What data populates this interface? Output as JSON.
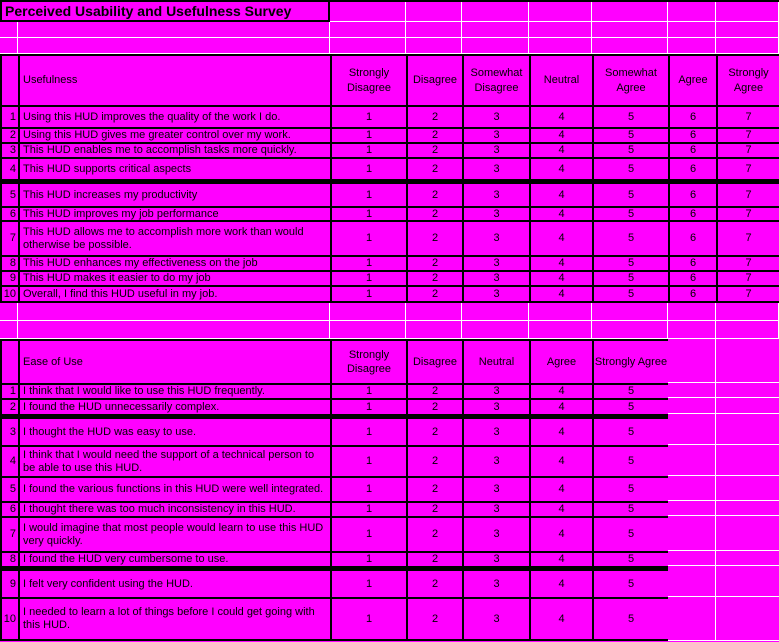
{
  "title": "Perceived Usability and Usefulness Survey",
  "row_numbers": [
    "1",
    "2",
    "3",
    "4",
    "5",
    "6",
    "7",
    "8",
    "9",
    "10"
  ],
  "usefulness_table": {
    "label": "Usefulness",
    "columns": [
      "Strongly Disagree",
      "Disagree",
      "Somewhat Disagree",
      "Neutral",
      "Somewhat Agree",
      "Agree",
      "Strongly Agree"
    ],
    "scale": [
      "1",
      "2",
      "3",
      "4",
      "5",
      "6",
      "7"
    ],
    "items": [
      "Using this HUD improves the quality of the work I do.",
      "Using this HUD gives me greater control over my work.",
      "This HUD enables me to accomplish tasks more quickly.",
      "This HUD supports critical aspects",
      "This HUD increases my productivity",
      "This HUD improves my job performance",
      "This HUD allows me to accomplish more work than would otherwise be possible.",
      "This HUD enhances my effectiveness on the job",
      "This HUD makes it easier to do my job",
      "Overall, I find this HUD useful in my job."
    ]
  },
  "ease_of_use_table": {
    "label": "Ease of Use",
    "columns": [
      "Strongly Disagree",
      "Disagree",
      "Neutral",
      "Agree",
      "Strongly Agree"
    ],
    "scale": [
      "1",
      "2",
      "3",
      "4",
      "5"
    ],
    "items": [
      "I think that I would like to use this HUD frequently.",
      "I found the HUD unnecessarily complex.",
      "I thought the HUD was easy to use.",
      "I think that I would need the support of a technical person to be able to use this HUD.",
      "I found the various functions in this HUD were well integrated.",
      "I thought there was too much inconsistency in this HUD.",
      "I would imagine that most people would learn to use this HUD very quickly.",
      "I found the HUD very cumbersome to use.",
      "I felt very confident using the HUD.",
      "I needed to learn a lot of things before I could get going with this HUD."
    ]
  },
  "colors": {
    "background": "#FF00FF",
    "gridline": "#FFFFFF",
    "table_border": "#000000",
    "text": "#000000"
  }
}
